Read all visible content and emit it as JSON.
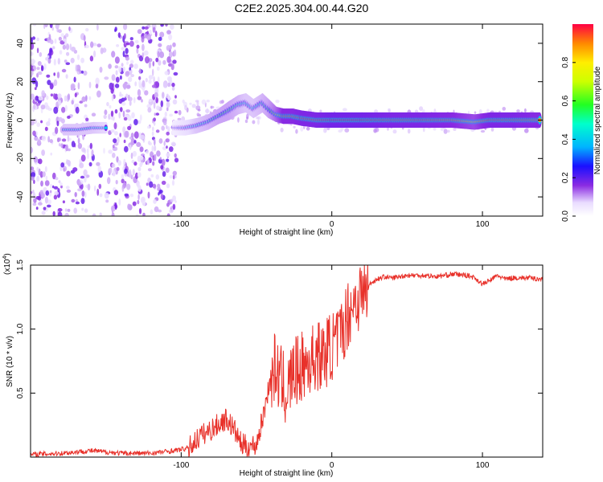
{
  "title": "C2E2.2025.304.00.44.G20",
  "chart_data": [
    {
      "type": "heatmap",
      "name": "spectrogram",
      "xlabel": "Height of straight line (km)",
      "ylabel": "Frequency (Hz)",
      "xlim": [
        -200,
        140
      ],
      "ylim": [
        -50,
        50
      ],
      "x_ticks": [
        {
          "value": -100,
          "label": "-100"
        },
        {
          "value": 0,
          "label": "0"
        },
        {
          "value": 100,
          "label": "100"
        }
      ],
      "y_ticks": [
        {
          "value": -40,
          "label": "-40"
        },
        {
          "value": -20,
          "label": "-20"
        },
        {
          "value": 0,
          "label": "0"
        },
        {
          "value": 20,
          "label": "20"
        },
        {
          "value": 40,
          "label": "40"
        }
      ],
      "colorbar": {
        "label": "Normalized spectral amplitude",
        "range": [
          0,
          1
        ],
        "ticks": [
          {
            "value": 0.0,
            "label": "0.0"
          },
          {
            "value": 0.2,
            "label": "0.2"
          },
          {
            "value": 0.4,
            "label": "0.4"
          },
          {
            "value": 0.6,
            "label": "0.6"
          },
          {
            "value": 0.8,
            "label": "0.8"
          }
        ]
      },
      "signal_track": [
        {
          "x": -178,
          "freq": -5,
          "amp": 0.45,
          "width": 3
        },
        {
          "x": -168,
          "freq": -5,
          "amp": 0.45,
          "width": 3
        },
        {
          "x": -158,
          "freq": -4,
          "amp": 0.45,
          "width": 3
        },
        {
          "x": -150,
          "freq": -4,
          "amp": 0.4,
          "width": 3
        },
        {
          "x": -105,
          "freq": -4,
          "amp": 0.2,
          "width": 4
        },
        {
          "x": -97,
          "freq": -4,
          "amp": 0.35,
          "width": 4
        },
        {
          "x": -90,
          "freq": -3,
          "amp": 0.45,
          "width": 4
        },
        {
          "x": -82,
          "freq": -1,
          "amp": 0.5,
          "width": 4
        },
        {
          "x": -75,
          "freq": 2,
          "amp": 0.55,
          "width": 4
        },
        {
          "x": -68,
          "freq": 5,
          "amp": 0.55,
          "width": 5
        },
        {
          "x": -62,
          "freq": 8,
          "amp": 0.5,
          "width": 5
        },
        {
          "x": -57,
          "freq": 9,
          "amp": 0.45,
          "width": 5
        },
        {
          "x": -52,
          "freq": 6,
          "amp": 0.45,
          "width": 5
        },
        {
          "x": -46,
          "freq": 9,
          "amp": 0.5,
          "width": 5
        },
        {
          "x": -42,
          "freq": 6,
          "amp": 0.55,
          "width": 5
        },
        {
          "x": -37,
          "freq": 3,
          "amp": 0.7,
          "width": 4
        },
        {
          "x": -32,
          "freq": 2,
          "amp": 0.9,
          "width": 4
        },
        {
          "x": -26,
          "freq": 2,
          "amp": 0.9,
          "width": 4
        },
        {
          "x": -20,
          "freq": 1,
          "amp": 0.95,
          "width": 4
        },
        {
          "x": -10,
          "freq": 0,
          "amp": 0.95,
          "width": 4
        },
        {
          "x": 0,
          "freq": 0,
          "amp": 1.0,
          "width": 4
        },
        {
          "x": 20,
          "freq": 0,
          "amp": 1.0,
          "width": 4
        },
        {
          "x": 40,
          "freq": 0,
          "amp": 0.95,
          "width": 4
        },
        {
          "x": 60,
          "freq": 0,
          "amp": 0.95,
          "width": 4
        },
        {
          "x": 80,
          "freq": 0,
          "amp": 0.9,
          "width": 4
        },
        {
          "x": 95,
          "freq": -1,
          "amp": 0.8,
          "width": 4
        },
        {
          "x": 105,
          "freq": 0,
          "amp": 0.95,
          "width": 4
        },
        {
          "x": 120,
          "freq": 0,
          "amp": 0.95,
          "width": 4
        },
        {
          "x": 138,
          "freq": 0,
          "amp": 0.9,
          "width": 4
        }
      ]
    },
    {
      "type": "line",
      "name": "snr",
      "xlabel": "Height of straight line (km)",
      "ylabel": "SNR (10 * v/v)",
      "y_multiplier": "(x10",
      "y_multiplier_exp": "4",
      "y_multiplier_close": ")",
      "xlim": [
        -200,
        140
      ],
      "ylim": [
        0,
        1.5
      ],
      "x_ticks": [
        {
          "value": -100,
          "label": "-100"
        },
        {
          "value": 0,
          "label": "0"
        },
        {
          "value": 100,
          "label": "100"
        }
      ],
      "y_ticks": [
        {
          "value": 0.5,
          "label": "0.5"
        },
        {
          "value": 1.0,
          "label": "1.0"
        },
        {
          "value": 1.5,
          "label": "1.5"
        }
      ],
      "series": [
        {
          "name": "SNR",
          "color": "#e8312a",
          "x": [
            -200,
            -180,
            -160,
            -140,
            -120,
            -105,
            -95,
            -88,
            -82,
            -76,
            -70,
            -65,
            -60,
            -55,
            -50,
            -45,
            -42,
            -38,
            -34,
            -30,
            -26,
            -22,
            -18,
            -14,
            -10,
            -6,
            -2,
            2,
            6,
            10,
            14,
            18,
            22,
            26,
            30,
            35,
            40,
            50,
            60,
            70,
            80,
            90,
            95,
            100,
            105,
            110,
            115,
            120,
            130,
            140
          ],
          "y": [
            0.02,
            0.03,
            0.05,
            0.03,
            0.03,
            0.05,
            0.07,
            0.16,
            0.2,
            0.25,
            0.3,
            0.22,
            0.1,
            0.08,
            0.1,
            0.35,
            0.55,
            0.7,
            0.6,
            0.5,
            0.65,
            0.68,
            0.72,
            0.75,
            0.8,
            0.78,
            0.85,
            0.88,
            0.95,
            1.1,
            1.2,
            1.25,
            1.3,
            1.36,
            1.39,
            1.41,
            1.4,
            1.42,
            1.42,
            1.41,
            1.43,
            1.42,
            1.4,
            1.35,
            1.38,
            1.42,
            1.39,
            1.4,
            1.4,
            1.39
          ]
        }
      ]
    }
  ]
}
